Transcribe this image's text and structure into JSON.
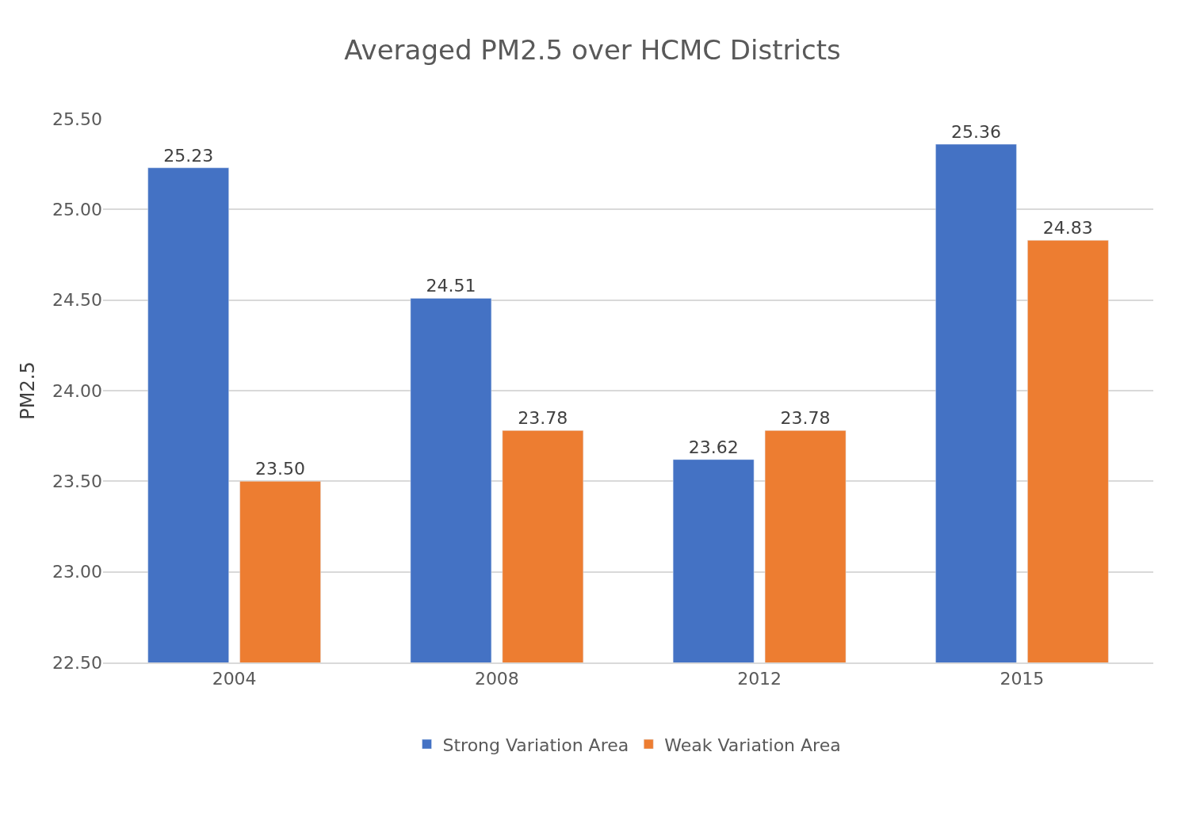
{
  "chart_data": {
    "type": "bar",
    "title": "Averaged PM2.5 over HCMC Districts",
    "ylabel": "PM2.5",
    "categories": [
      "2004",
      "2008",
      "2012",
      "2015"
    ],
    "series": [
      {
        "name": "Strong Variation Area",
        "color": "#4472c4",
        "values": [
          25.23,
          24.51,
          23.62,
          25.36
        ],
        "value_labels": [
          "25.23",
          "24.51",
          "23.62",
          "25.36"
        ]
      },
      {
        "name": "Weak Variation Area",
        "color": "#ed7d31",
        "values": [
          23.5,
          23.78,
          23.78,
          24.83
        ],
        "value_labels": [
          "23.50",
          "23.78",
          "23.78",
          "24.83"
        ]
      }
    ],
    "ylim": [
      22.5,
      25.5
    ],
    "yticks": [
      {
        "value": 22.5,
        "label": "22.50"
      },
      {
        "value": 23.0,
        "label": "23.00"
      },
      {
        "value": 23.5,
        "label": "23.50"
      },
      {
        "value": 24.0,
        "label": "24.00"
      },
      {
        "value": 24.5,
        "label": "24.50"
      },
      {
        "value": 25.0,
        "label": "25.00"
      },
      {
        "value": 25.5,
        "label": "25.50"
      }
    ],
    "grid": "y",
    "legend": "bottom"
  }
}
